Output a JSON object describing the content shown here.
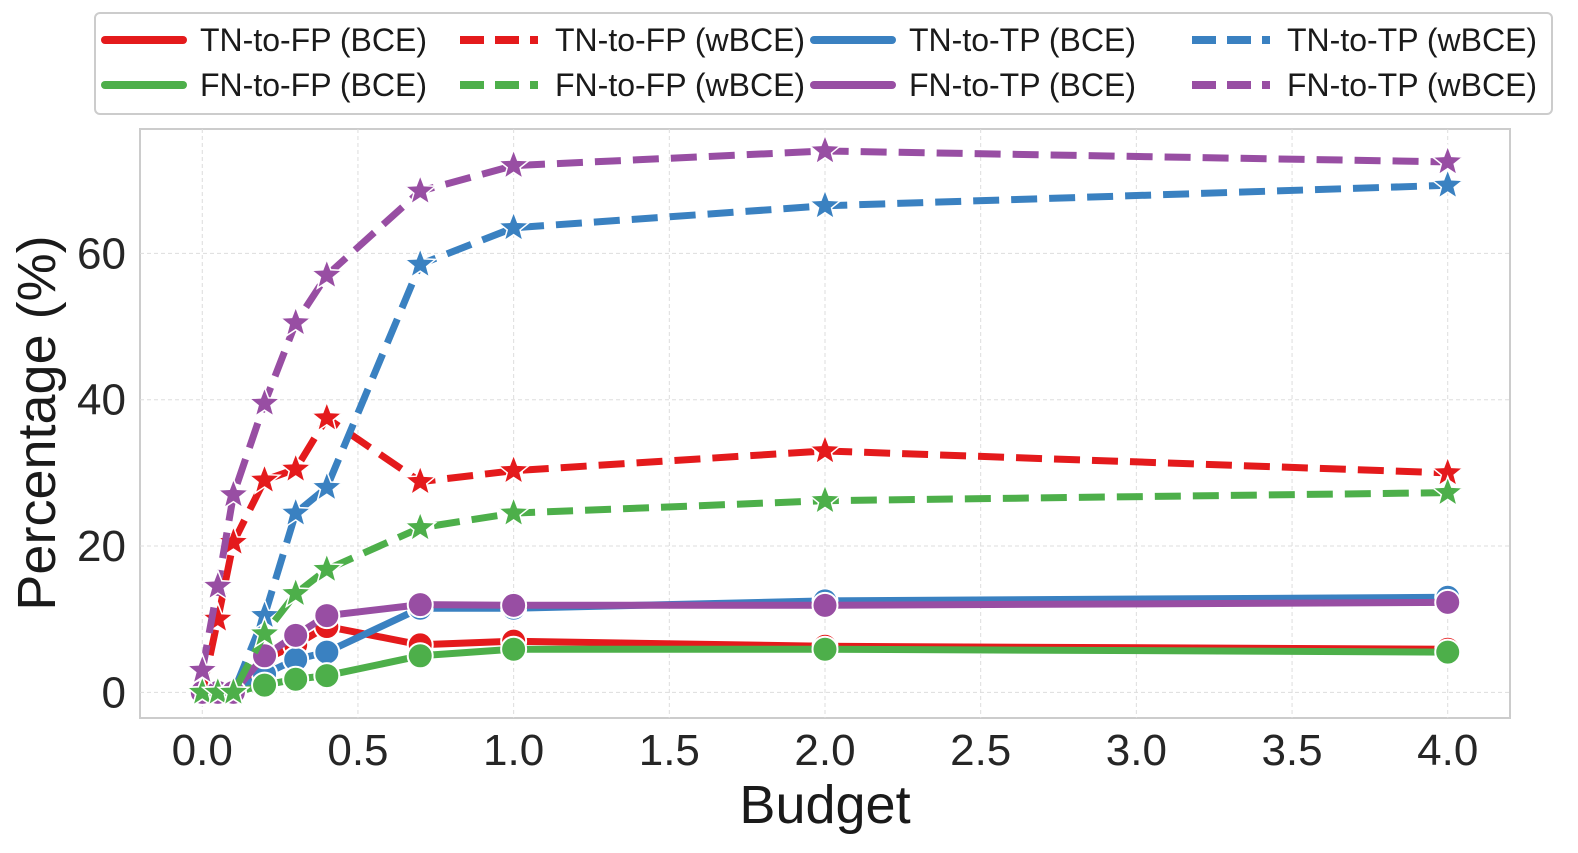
{
  "chart_data": {
    "type": "line",
    "title": "",
    "xlabel": "Budget",
    "ylabel": "Percentage (%)",
    "x": [
      0.0,
      0.05,
      0.1,
      0.2,
      0.3,
      0.4,
      0.7,
      1.0,
      2.0,
      4.0
    ],
    "x_ticks": [
      0.0,
      0.5,
      1.0,
      1.5,
      2.0,
      2.5,
      3.0,
      3.5,
      4.0
    ],
    "x_tick_labels": [
      "0.0",
      "0.5",
      "1.0",
      "1.5",
      "2.0",
      "2.5",
      "3.0",
      "3.5",
      "4.0"
    ],
    "y_ticks": [
      0,
      20,
      40,
      60
    ],
    "y_tick_labels": [
      "0",
      "20",
      "40",
      "60"
    ],
    "xlim": [
      -0.2,
      4.2
    ],
    "ylim": [
      -3.5,
      77
    ],
    "grid": true,
    "legend_position": "top-outside",
    "colors": {
      "red": "#e41a1c",
      "blue": "#3a81c1",
      "green": "#4daf4a",
      "purple": "#984ea3"
    },
    "series": [
      {
        "name": "TN-to-FP (BCE)",
        "color": "#e41a1c",
        "dash": "solid",
        "marker": "circle",
        "values": [
          0.0,
          0.0,
          0.0,
          4.5,
          6.5,
          9.0,
          6.5,
          7.0,
          6.3,
          5.9
        ]
      },
      {
        "name": "TN-to-TP (BCE)",
        "color": "#3a81c1",
        "dash": "solid",
        "marker": "circle",
        "values": [
          0.0,
          0.0,
          0.0,
          2.5,
          4.5,
          5.5,
          11.5,
          11.5,
          12.5,
          13.0
        ]
      },
      {
        "name": "FN-to-FP (BCE)",
        "color": "#4daf4a",
        "dash": "solid",
        "marker": "circle",
        "values": [
          0.0,
          0.0,
          0.0,
          1.0,
          1.8,
          2.3,
          5.0,
          5.9,
          5.9,
          5.5
        ]
      },
      {
        "name": "FN-to-TP (BCE)",
        "color": "#984ea3",
        "dash": "solid",
        "marker": "circle",
        "values": [
          0.0,
          0.0,
          0.0,
          5.0,
          7.8,
          10.5,
          12.0,
          11.9,
          11.9,
          12.3
        ]
      },
      {
        "name": "TN-to-FP (wBCE)",
        "color": "#e41a1c",
        "dash": "dashed",
        "marker": "star",
        "values": [
          0.0,
          10.0,
          20.5,
          29.0,
          30.5,
          37.5,
          28.8,
          30.3,
          33.0,
          30.0
        ]
      },
      {
        "name": "TN-to-TP (wBCE)",
        "color": "#3a81c1",
        "dash": "dashed",
        "marker": "star",
        "values": [
          0.0,
          0.0,
          0.0,
          10.5,
          24.5,
          28.0,
          58.5,
          63.5,
          66.5,
          69.3
        ]
      },
      {
        "name": "FN-to-FP (wBCE)",
        "color": "#4daf4a",
        "dash": "dashed",
        "marker": "star",
        "values": [
          0.0,
          0.0,
          0.0,
          8.0,
          13.5,
          16.8,
          22.5,
          24.5,
          26.2,
          27.3
        ]
      },
      {
        "name": "FN-to-TP (wBCE)",
        "color": "#984ea3",
        "dash": "dashed",
        "marker": "star",
        "values": [
          3.0,
          14.5,
          27.0,
          39.5,
          50.5,
          57.0,
          68.5,
          72.0,
          74.0,
          72.5
        ]
      }
    ],
    "legend_order": [
      0,
      2,
      4,
      6,
      1,
      3,
      5,
      7
    ]
  }
}
